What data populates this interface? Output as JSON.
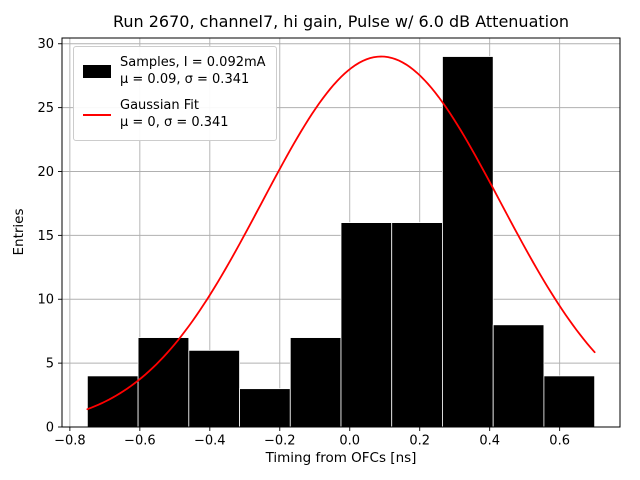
{
  "chart_data": {
    "type": "histogram",
    "title": "Run 2670, channel7, hi gain, Pulse w/ 6.0 dB Attenuation",
    "xlabel": "Timing from OFCs [ns]",
    "ylabel": "Entries",
    "xlim": [
      -0.8225,
      0.7725
    ],
    "ylim": [
      0,
      30.45
    ],
    "xticks": [
      -0.8,
      -0.6,
      -0.4,
      -0.2,
      0.0,
      0.2,
      0.4,
      0.6
    ],
    "xtick_labels": [
      "−0.8",
      "−0.6",
      "−0.4",
      "−0.2",
      "0.0",
      "0.2",
      "0.4",
      "0.6"
    ],
    "yticks": [
      0,
      5,
      10,
      15,
      20,
      25,
      30
    ],
    "ytick_labels": [
      "0",
      "5",
      "10",
      "15",
      "20",
      "25",
      "30"
    ],
    "grid": true,
    "grid_color": "#b0b0b0",
    "frame_color": "#000000",
    "bins": {
      "edges": [
        -0.75,
        -0.605,
        -0.46,
        -0.315,
        -0.17,
        -0.025,
        0.12,
        0.265,
        0.41,
        0.555,
        0.7
      ],
      "counts": [
        4,
        7,
        6,
        3,
        7,
        16,
        16,
        29,
        8,
        4
      ],
      "total": 100,
      "color": "#000000",
      "edge_color": "#ffffff"
    },
    "gaussian_fit": {
      "amplitude": 29,
      "mu": 0.09,
      "sigma": 0.341,
      "x_range": [
        -0.75,
        0.7
      ],
      "color": "#ff0000"
    },
    "legend": {
      "position": "upper left",
      "entries": [
        {
          "label": "Samples, I = 0.092mA",
          "sublabel": "μ = 0.09, σ = 0.341",
          "swatch": "patch",
          "color": "#000000"
        },
        {
          "label": "Gaussian Fit",
          "sublabel": "μ = 0, σ = 0.341",
          "swatch": "line",
          "color": "#ff0000"
        }
      ]
    }
  }
}
